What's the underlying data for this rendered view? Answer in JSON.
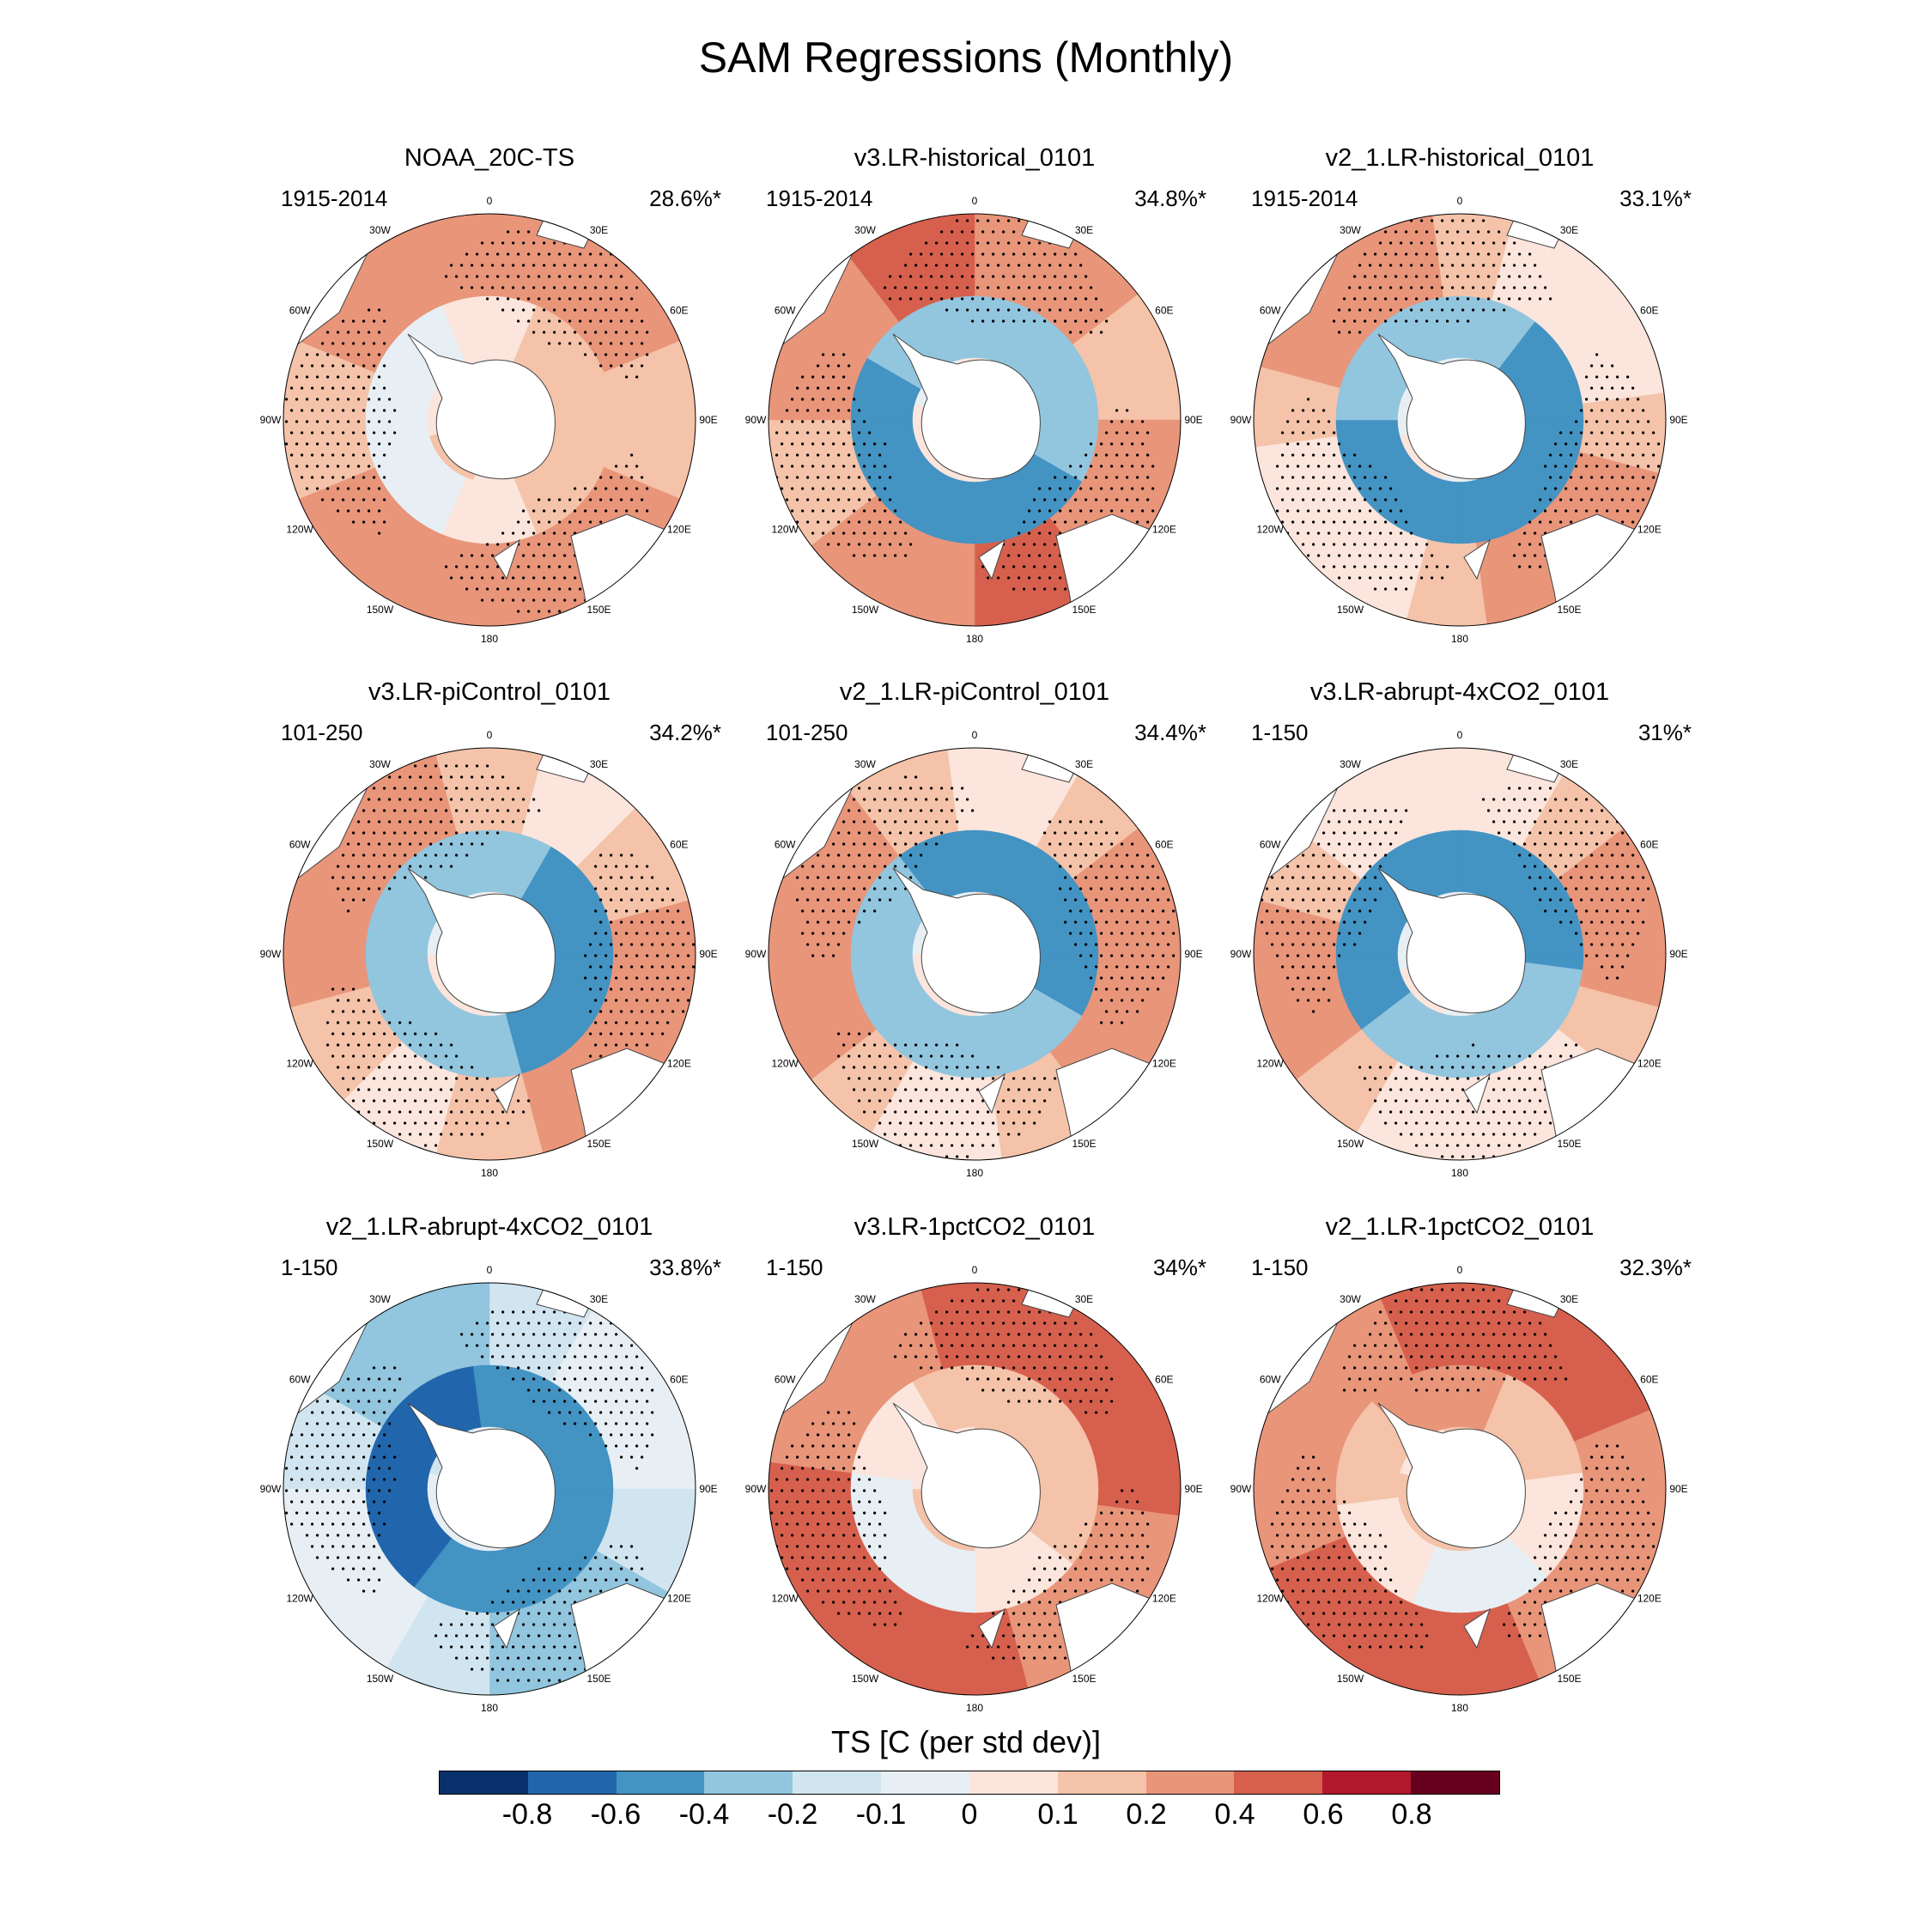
{
  "figure": {
    "title": "SAM Regressions (Monthly)"
  },
  "longitude_labels": [
    "0",
    "30E",
    "60E",
    "90E",
    "120E",
    "150E",
    "180",
    "150W",
    "120W",
    "90W",
    "60W",
    "30W"
  ],
  "panels": [
    {
      "title": "NOAA_20C-TS",
      "period": "1915-2014",
      "variance": "28.6%*",
      "pattern": {
        "inner_ring": 0.05,
        "outer_ring": 0.28,
        "offset": 0.2
      }
    },
    {
      "title": "v3.LR-historical_0101",
      "period": "1915-2014",
      "variance": "34.8%*",
      "pattern": {
        "inner_ring": -0.4,
        "outer_ring": 0.3,
        "offset": 0.05
      }
    },
    {
      "title": "v2_1.LR-historical_0101",
      "period": "1915-2014",
      "variance": "33.1%*",
      "pattern": {
        "inner_ring": -0.45,
        "outer_ring": 0.15,
        "offset": -0.05
      }
    },
    {
      "title": "v3.LR-piControl_0101",
      "period": "101-250",
      "variance": "34.2%*",
      "pattern": {
        "inner_ring": -0.35,
        "outer_ring": 0.2,
        "offset": 0.0
      }
    },
    {
      "title": "v2_1.LR-piControl_0101",
      "period": "101-250",
      "variance": "34.4%*",
      "pattern": {
        "inner_ring": -0.38,
        "outer_ring": 0.2,
        "offset": 0.0
      }
    },
    {
      "title": "v3.LR-abrupt-4xCO2_0101",
      "period": "1-150",
      "variance": "31%*",
      "pattern": {
        "inner_ring": -0.45,
        "outer_ring": 0.12,
        "offset": -0.05
      }
    },
    {
      "title": "v2_1.LR-abrupt-4xCO2_0101",
      "period": "1-150",
      "variance": "33.8%*",
      "pattern": {
        "inner_ring": -0.55,
        "outer_ring": -0.15,
        "offset": -0.2
      }
    },
    {
      "title": "v3.LR-1pctCO2_0101",
      "period": "1-150",
      "variance": "34%*",
      "pattern": {
        "inner_ring": 0.08,
        "outer_ring": 0.45,
        "offset": 0.25
      }
    },
    {
      "title": "v2_1.LR-1pctCO2_0101",
      "period": "1-150",
      "variance": "32.3%*",
      "pattern": {
        "inner_ring": 0.1,
        "outer_ring": 0.4,
        "offset": 0.3
      }
    }
  ],
  "colorbar": {
    "title": "TS [C (per std dev)]",
    "colors": [
      "#08306b",
      "#2166ac",
      "#4393c3",
      "#92c5de",
      "#d1e5f0",
      "#e8eff4",
      "#fbe5dc",
      "#f4c3a9",
      "#e8957a",
      "#d6604d",
      "#b2182b",
      "#67001f"
    ],
    "labels": [
      "-0.8",
      "-0.6",
      "-0.4",
      "-0.2",
      "-0.1",
      "0",
      "0.1",
      "0.2",
      "0.4",
      "0.6",
      "0.8"
    ]
  }
}
